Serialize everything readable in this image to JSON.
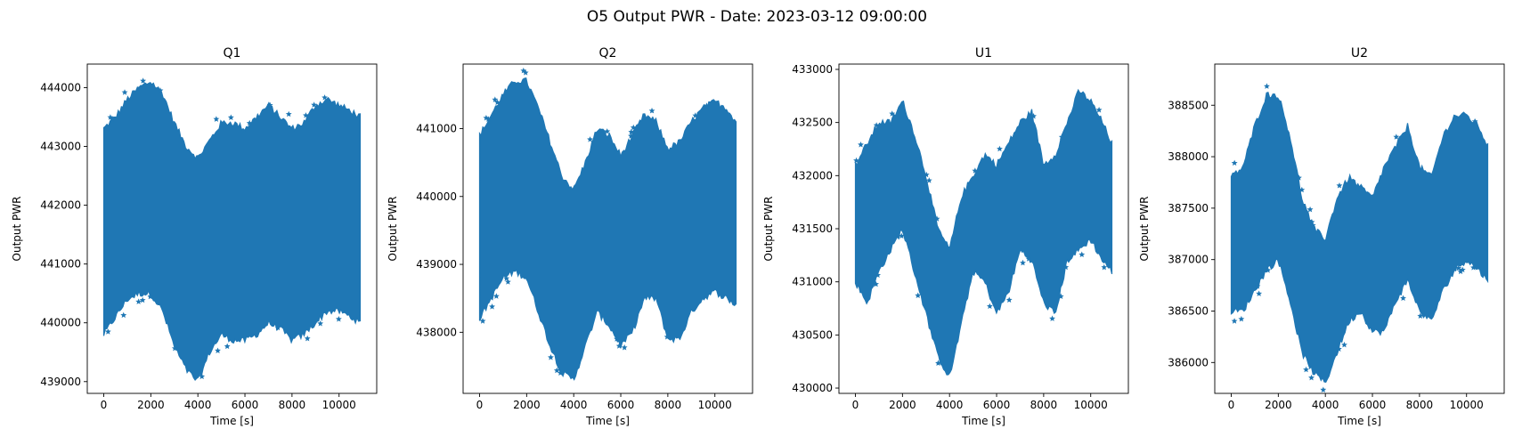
{
  "figure": {
    "suptitle": "O5 Output PWR - Date: 2023-03-12 09:00:00"
  },
  "chart_data": [
    {
      "type": "scatter",
      "marker": "star",
      "color": "#1f77b4",
      "title": "Q1",
      "xlabel": "Time [s]",
      "ylabel": "Output PWR",
      "xlim": [
        -700,
        11600
      ],
      "ylim": [
        438800,
        444400
      ],
      "xticks": [
        0,
        2000,
        4000,
        6000,
        8000,
        10000
      ],
      "yticks": [
        439000,
        440000,
        441000,
        442000,
        443000,
        444000
      ],
      "grid": false,
      "series": [
        {
          "x": [
            0,
            500,
            1000,
            1500,
            2000,
            2500,
            3000,
            3500,
            4000,
            4500,
            5000,
            5500,
            6000,
            6500,
            7000,
            7500,
            8000,
            8500,
            9000,
            9500,
            10000,
            10500,
            10900
          ],
          "upper": [
            443300,
            443500,
            443800,
            444000,
            444100,
            443900,
            443400,
            443000,
            442800,
            443100,
            443400,
            443400,
            443300,
            443500,
            443700,
            443500,
            443300,
            443400,
            443700,
            443800,
            443700,
            443600,
            443500
          ],
          "lower": [
            439800,
            440100,
            440400,
            440500,
            440500,
            440200,
            439600,
            439200,
            439000,
            439500,
            439800,
            439700,
            439700,
            439800,
            440000,
            439900,
            439700,
            439800,
            440000,
            440200,
            440200,
            440100,
            440000
          ]
        }
      ]
    },
    {
      "type": "scatter",
      "marker": "star",
      "color": "#1f77b4",
      "title": "Q2",
      "xlabel": "Time [s]",
      "ylabel": "Output PWR",
      "xlim": [
        -700,
        11600
      ],
      "ylim": [
        437100,
        441950
      ],
      "xticks": [
        0,
        2000,
        4000,
        6000,
        8000,
        10000
      ],
      "yticks": [
        438000,
        439000,
        440000,
        441000
      ],
      "grid": false,
      "series": [
        {
          "x": [
            0,
            500,
            1000,
            1500,
            2000,
            2500,
            3000,
            3500,
            4000,
            4500,
            5000,
            5500,
            6000,
            6500,
            7000,
            7500,
            8000,
            8500,
            9000,
            9500,
            10000,
            10500,
            10900
          ],
          "upper": [
            440900,
            441200,
            441500,
            441700,
            441700,
            441300,
            440800,
            440300,
            440100,
            440500,
            441000,
            440900,
            440600,
            440900,
            441200,
            441100,
            440700,
            440800,
            441100,
            441300,
            441400,
            441300,
            441100
          ],
          "lower": [
            438200,
            438500,
            438800,
            438900,
            438800,
            438300,
            437800,
            437400,
            437300,
            437800,
            438300,
            438100,
            437800,
            438000,
            438500,
            438500,
            437900,
            437900,
            438300,
            438500,
            438600,
            438500,
            438400
          ]
        }
      ]
    },
    {
      "type": "scatter",
      "marker": "star",
      "color": "#1f77b4",
      "title": "U1",
      "xlabel": "Time [s]",
      "ylabel": "Output PWR",
      "xlim": [
        -700,
        11600
      ],
      "ylim": [
        429950,
        433050
      ],
      "xticks": [
        0,
        2000,
        4000,
        6000,
        8000,
        10000
      ],
      "yticks": [
        430000,
        430500,
        431000,
        431500,
        432000,
        432500,
        433000
      ],
      "grid": false,
      "series": [
        {
          "x": [
            0,
            500,
            1000,
            1500,
            2000,
            2500,
            3000,
            3500,
            4000,
            4500,
            5000,
            5500,
            6000,
            6500,
            7000,
            7500,
            8000,
            8500,
            9000,
            9500,
            10000,
            10500,
            10900
          ],
          "upper": [
            432100,
            432300,
            432500,
            432500,
            432700,
            432400,
            432000,
            431500,
            431300,
            431800,
            432000,
            432200,
            432100,
            432300,
            432500,
            432600,
            432100,
            432200,
            432500,
            432800,
            432700,
            432500,
            432300
          ],
          "lower": [
            431000,
            430800,
            431100,
            431300,
            431500,
            431100,
            430700,
            430300,
            430100,
            430600,
            431100,
            431000,
            430700,
            430900,
            431300,
            431200,
            430800,
            430700,
            431200,
            431300,
            431400,
            431200,
            431100
          ]
        }
      ]
    },
    {
      "type": "scatter",
      "marker": "star",
      "color": "#1f77b4",
      "title": "U2",
      "xlabel": "Time [s]",
      "ylabel": "Output PWR",
      "xlim": [
        -700,
        11600
      ],
      "ylim": [
        385700,
        388900
      ],
      "xticks": [
        0,
        2000,
        4000,
        6000,
        8000,
        10000
      ],
      "yticks": [
        386000,
        386500,
        387000,
        387500,
        388000,
        388500
      ],
      "grid": false,
      "series": [
        {
          "x": [
            0,
            500,
            1000,
            1500,
            2000,
            2500,
            3000,
            3500,
            4000,
            4500,
            5000,
            5500,
            6000,
            6500,
            7000,
            7500,
            8000,
            8500,
            9000,
            9500,
            10000,
            10500,
            10900
          ],
          "upper": [
            387800,
            387900,
            388300,
            388600,
            388600,
            388200,
            387600,
            387300,
            387200,
            387600,
            387800,
            387700,
            387600,
            387900,
            388100,
            388300,
            387900,
            387800,
            388200,
            388400,
            388400,
            388300,
            388100
          ],
          "lower": [
            386500,
            386500,
            386700,
            386900,
            387000,
            386600,
            386100,
            385900,
            385800,
            386100,
            386400,
            386500,
            386300,
            386300,
            386600,
            386800,
            386500,
            386400,
            386700,
            386900,
            387000,
            386900,
            386800
          ]
        }
      ]
    }
  ]
}
